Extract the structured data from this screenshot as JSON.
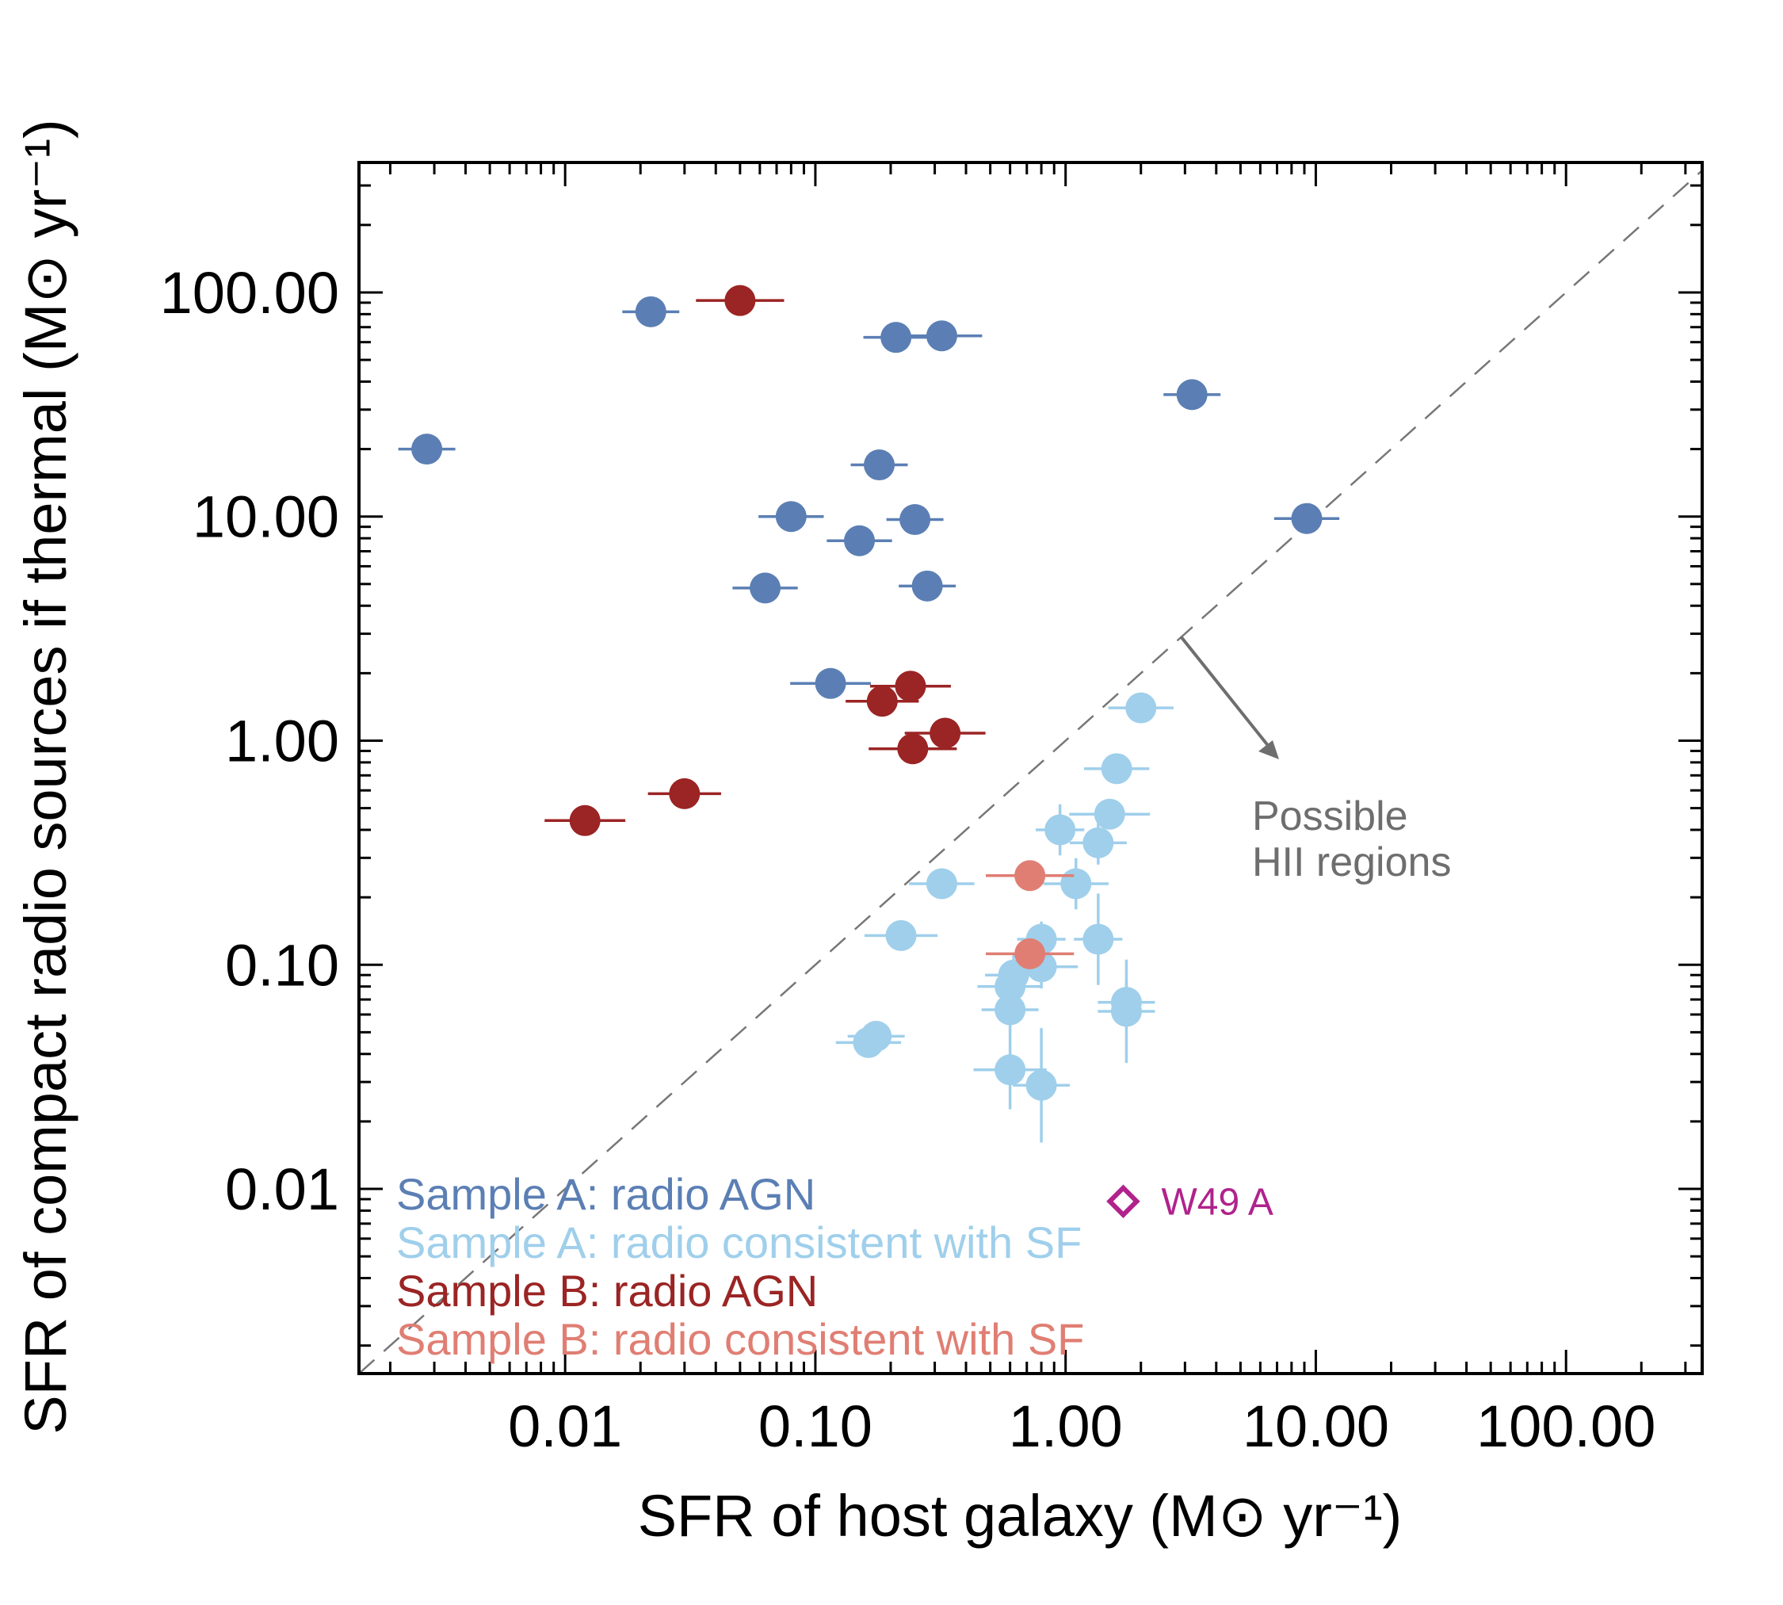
{
  "chart_data": {
    "type": "scatter",
    "xlabel": "SFR of host galaxy (M⊙ yr⁻¹)",
    "ylabel": "SFR of compact radio sources if thermal (M⊙ yr⁻¹)",
    "xscale": "log",
    "yscale": "log",
    "xlim": [
      0.0015,
      350
    ],
    "ylim": [
      0.0015,
      380
    ],
    "x_ticks": [
      0.01,
      0.1,
      1,
      10,
      100
    ],
    "x_tick_labels": [
      "0.01",
      "0.10",
      "1.00",
      "10.00",
      "100.00"
    ],
    "y_ticks": [
      0.01,
      0.1,
      1,
      10,
      100
    ],
    "y_tick_labels": [
      "0.01",
      "0.10",
      "1.00",
      "10.00",
      "100.00"
    ],
    "one_to_one_line": true,
    "annotation": {
      "line1": "Possible",
      "line2": "HII regions"
    },
    "w49a": {
      "label": "W49 A",
      "x": 1.7,
      "y": 0.0088,
      "color": "#b0228c"
    },
    "legend_position": "bottom-left",
    "series": [
      {
        "name": "Sample A: radio AGN",
        "color": "#5b7fb4",
        "points": [
          {
            "x": 0.0028,
            "y": 20,
            "xerr": 1.3,
            "yerr": 1
          },
          {
            "x": 0.022,
            "y": 82,
            "xerr": 1.3,
            "yerr": 1
          },
          {
            "x": 0.21,
            "y": 63,
            "xerr": 1.35,
            "yerr": 1
          },
          {
            "x": 0.32,
            "y": 64,
            "xerr": 1.45,
            "yerr": 1
          },
          {
            "x": 3.2,
            "y": 35,
            "xerr": 1.3,
            "yerr": 1
          },
          {
            "x": 0.18,
            "y": 17,
            "xerr": 1.3,
            "yerr": 1
          },
          {
            "x": 0.08,
            "y": 10,
            "xerr": 1.35,
            "yerr": 1
          },
          {
            "x": 0.25,
            "y": 9.7,
            "xerr": 1.3,
            "yerr": 1
          },
          {
            "x": 0.15,
            "y": 7.8,
            "xerr": 1.35,
            "yerr": 1
          },
          {
            "x": 9.2,
            "y": 9.8,
            "xerr": 1.35,
            "yerr": 1
          },
          {
            "x": 0.063,
            "y": 4.8,
            "xerr": 1.35,
            "yerr": 1
          },
          {
            "x": 0.28,
            "y": 4.9,
            "xerr": 1.3,
            "yerr": 1
          },
          {
            "x": 0.115,
            "y": 1.8,
            "xerr": 1.45,
            "yerr": 1
          }
        ]
      },
      {
        "name": "Sample A: radio consistent with SF",
        "color": "#9fcfeb",
        "points": [
          {
            "x": 2.0,
            "y": 1.4,
            "xerr": 1.35,
            "yerr": 1
          },
          {
            "x": 1.6,
            "y": 0.75,
            "xerr": 1.35,
            "yerr": 1
          },
          {
            "x": 1.5,
            "y": 0.47,
            "xerr": 1.45,
            "yerr": 1
          },
          {
            "x": 0.95,
            "y": 0.4,
            "xerr": 1.25,
            "yerr": 1.3
          },
          {
            "x": 1.35,
            "y": 0.35,
            "xerr": 1.3,
            "yerr": 1.25
          },
          {
            "x": 1.1,
            "y": 0.23,
            "xerr": 1.35,
            "yerr": 1.3
          },
          {
            "x": 0.32,
            "y": 0.23,
            "xerr": 1.35,
            "yerr": 1
          },
          {
            "x": 0.22,
            "y": 0.135,
            "xerr": 1.4,
            "yerr": 1
          },
          {
            "x": 0.8,
            "y": 0.13,
            "xerr": 1.25,
            "yerr": 1.2
          },
          {
            "x": 1.35,
            "y": 0.13,
            "xerr": 1.25,
            "yerr": 1.6
          },
          {
            "x": 0.8,
            "y": 0.098,
            "xerr": 1.4,
            "yerr": 1.25
          },
          {
            "x": 0.62,
            "y": 0.09,
            "xerr": 1.3,
            "yerr": 1.25
          },
          {
            "x": 0.6,
            "y": 0.08,
            "xerr": 1.35,
            "yerr": 1.2
          },
          {
            "x": 0.6,
            "y": 0.063,
            "xerr": 1.3,
            "yerr": 1.25
          },
          {
            "x": 1.75,
            "y": 0.068,
            "xerr": 1.3,
            "yerr": 1.25
          },
          {
            "x": 1.75,
            "y": 0.062,
            "xerr": 1.3,
            "yerr": 1.7
          },
          {
            "x": 0.175,
            "y": 0.048,
            "xerr": 1.3,
            "yerr": 1
          },
          {
            "x": 0.163,
            "y": 0.045,
            "xerr": 1.35,
            "yerr": 1
          },
          {
            "x": 0.6,
            "y": 0.034,
            "xerr": 1.4,
            "yerr": 1.5
          },
          {
            "x": 0.8,
            "y": 0.029,
            "xerr": 1.3,
            "yerr": 1.8
          }
        ]
      },
      {
        "name": "Sample B: radio AGN",
        "color": "#9b2424",
        "points": [
          {
            "x": 0.05,
            "y": 92,
            "xerr": 1.5,
            "yerr": 1
          },
          {
            "x": 0.24,
            "y": 1.75,
            "xerr": 1.45,
            "yerr": 1
          },
          {
            "x": 0.185,
            "y": 1.5,
            "xerr": 1.4,
            "yerr": 1
          },
          {
            "x": 0.33,
            "y": 1.08,
            "xerr": 1.45,
            "yerr": 1
          },
          {
            "x": 0.245,
            "y": 0.92,
            "xerr": 1.5,
            "yerr": 1
          },
          {
            "x": 0.03,
            "y": 0.58,
            "xerr": 1.4,
            "yerr": 1
          },
          {
            "x": 0.012,
            "y": 0.44,
            "xerr": 1.45,
            "yerr": 1
          }
        ]
      },
      {
        "name": "Sample B: radio consistent with SF",
        "color": "#e07e73",
        "points": [
          {
            "x": 0.72,
            "y": 0.25,
            "xerr": 1.5,
            "yerr": 1
          },
          {
            "x": 0.72,
            "y": 0.112,
            "xerr": 1.5,
            "yerr": 1
          }
        ]
      }
    ]
  }
}
